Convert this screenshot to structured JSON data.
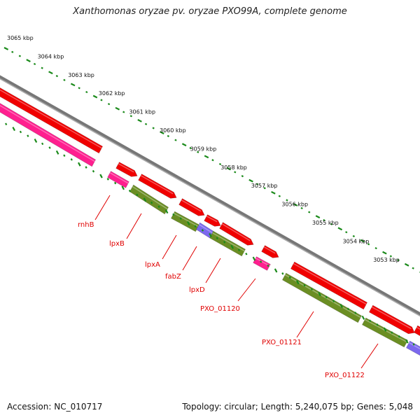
{
  "title": "Xanthomonas oryzae pv. oryzae PXO99A, complete genome",
  "footer": {
    "accession": "Accession: NC_010717",
    "summary": "Topology: circular; Length: 5,240,075 bp; Genes: 5,048"
  },
  "scale_labels": [
    "3065 kbp",
    "3064 kbp",
    "3063 kbp",
    "3062 kbp",
    "3061 kbp",
    "3060 kbp",
    "3059 kbp",
    "3058 kbp",
    "3057 kbp",
    "3056 kbp",
    "3055 kbp",
    "3054 kbp",
    "3053 kbp"
  ],
  "gene_labels": [
    "rnhB",
    "lpxB",
    "lpxA",
    "fabZ",
    "lpxD",
    "PXO_01120",
    "PXO_01121",
    "PXO_01122"
  ],
  "colors": {
    "cds": "#f00000",
    "gene": "#ff1f8f",
    "rrna_like": "#6b8e23",
    "purple": "#7b68ee",
    "ticks": "#1a8a1a",
    "backbone": "#888888",
    "label": "#e00000"
  }
}
